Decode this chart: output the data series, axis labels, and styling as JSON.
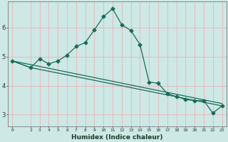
{
  "xlabel": "Humidex (Indice chaleur)",
  "bg_color": "#cde8e5",
  "line_color": "#1a6b5a",
  "grid_color": "#e8b4b8",
  "xlim": [
    -0.5,
    23.5
  ],
  "ylim": [
    2.6,
    6.9
  ],
  "yticks": [
    3,
    4,
    5,
    6
  ],
  "xticks": [
    0,
    2,
    3,
    4,
    5,
    6,
    7,
    8,
    9,
    10,
    11,
    12,
    13,
    14,
    15,
    16,
    17,
    18,
    19,
    20,
    21,
    22,
    23
  ],
  "line1_x": [
    0,
    2,
    3,
    4,
    5,
    6,
    7,
    8,
    9,
    10,
    11,
    12,
    13,
    14,
    15,
    16,
    17,
    18,
    19,
    20,
    21,
    22,
    23
  ],
  "line1_y": [
    4.85,
    4.62,
    4.92,
    4.75,
    4.85,
    5.05,
    5.35,
    5.48,
    5.92,
    6.38,
    6.65,
    6.1,
    5.9,
    5.42,
    4.12,
    4.08,
    3.72,
    3.62,
    3.52,
    3.48,
    3.48,
    3.05,
    3.3
  ],
  "line2_x": [
    0,
    23
  ],
  "line2_y": [
    4.85,
    3.38
  ],
  "line3_x": [
    0,
    2,
    23
  ],
  "line3_y": [
    4.85,
    4.62,
    3.3
  ]
}
